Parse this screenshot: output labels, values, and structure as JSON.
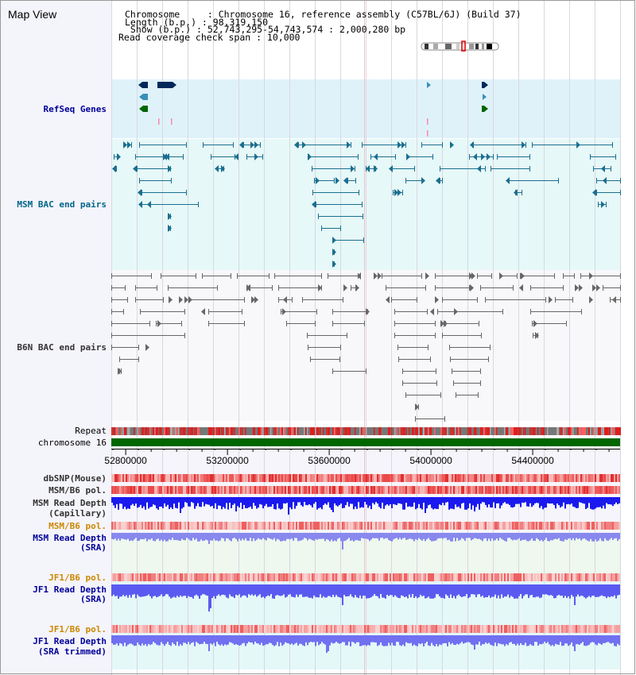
{
  "header": {
    "title": "Map View",
    "info_lines": [
      "Chromosome     : Chromosome 16, reference assembly (C57BL/6J) (Build 37)",
      "Length (b.p.) : 98,319,150",
      " Show (b.p.) : 52,743,295-54,743,574 : 2,000,280 bp",
      "Read coverage check span : 10,000"
    ]
  },
  "tracks": {
    "refseq": "RefSeq Genes",
    "msm_bac": "MSM BAC end pairs",
    "b6n_bac": "B6N BAC end pairs",
    "repeat": "Repeat",
    "chromosome": "chromosome 16",
    "dbsnp": "dbSNP(Mouse)",
    "msm_b6_pol_1": "MSM/B6 pol.",
    "msm_depth_cap_1": "MSM Read Depth",
    "msm_depth_cap_2": "(Capillary)",
    "msm_b6_pol_2": "MSM/B6 pol.",
    "msm_depth_sra_1": "MSM Read Depth",
    "msm_depth_sra_2": "(SRA)",
    "jf1_b6_pol_1": "JF1/B6 pol.",
    "jf1_depth_sra_1": "JF1 Read Depth",
    "jf1_depth_sra_2": "(SRA)",
    "jf1_b6_pol_2": "JF1/B6 pol.",
    "jf1_depth_trim_1": "JF1 Read Depth",
    "jf1_depth_trim_2": "(SRA trimmed)"
  },
  "axis": {
    "range": [
      52743295,
      54743574
    ],
    "ticks": [
      {
        "value": 52800000,
        "label": "52800000"
      },
      {
        "value": 53200000,
        "label": "53200000"
      },
      {
        "value": 53600000,
        "label": "53600000"
      },
      {
        "value": 54000000,
        "label": "54000000"
      },
      {
        "value": 54400000,
        "label": "54400000"
      }
    ]
  },
  "colors": {
    "refseq_bg": "#dff2fa",
    "msm_bg": "#e6f8f8",
    "b6n_bg": "#f8f8fb",
    "lower_bg": "#f5f5fb",
    "msm_sra_bg": "#eef8ee",
    "jf1_bg": "#e4f8f8",
    "refseq_label": "#000099",
    "msm_label": "#006688",
    "b6n_label": "#333333",
    "pol_orange": "#cc8800",
    "depth_blue": "#0000bb",
    "chromosome_green": "#006600",
    "refseq_navy": "#00285a",
    "refseq_teal": "#3a8fb8",
    "refseq_green": "#006600",
    "msm_feature": "#1a6f8f",
    "b6n_feature": "#666666"
  }
}
